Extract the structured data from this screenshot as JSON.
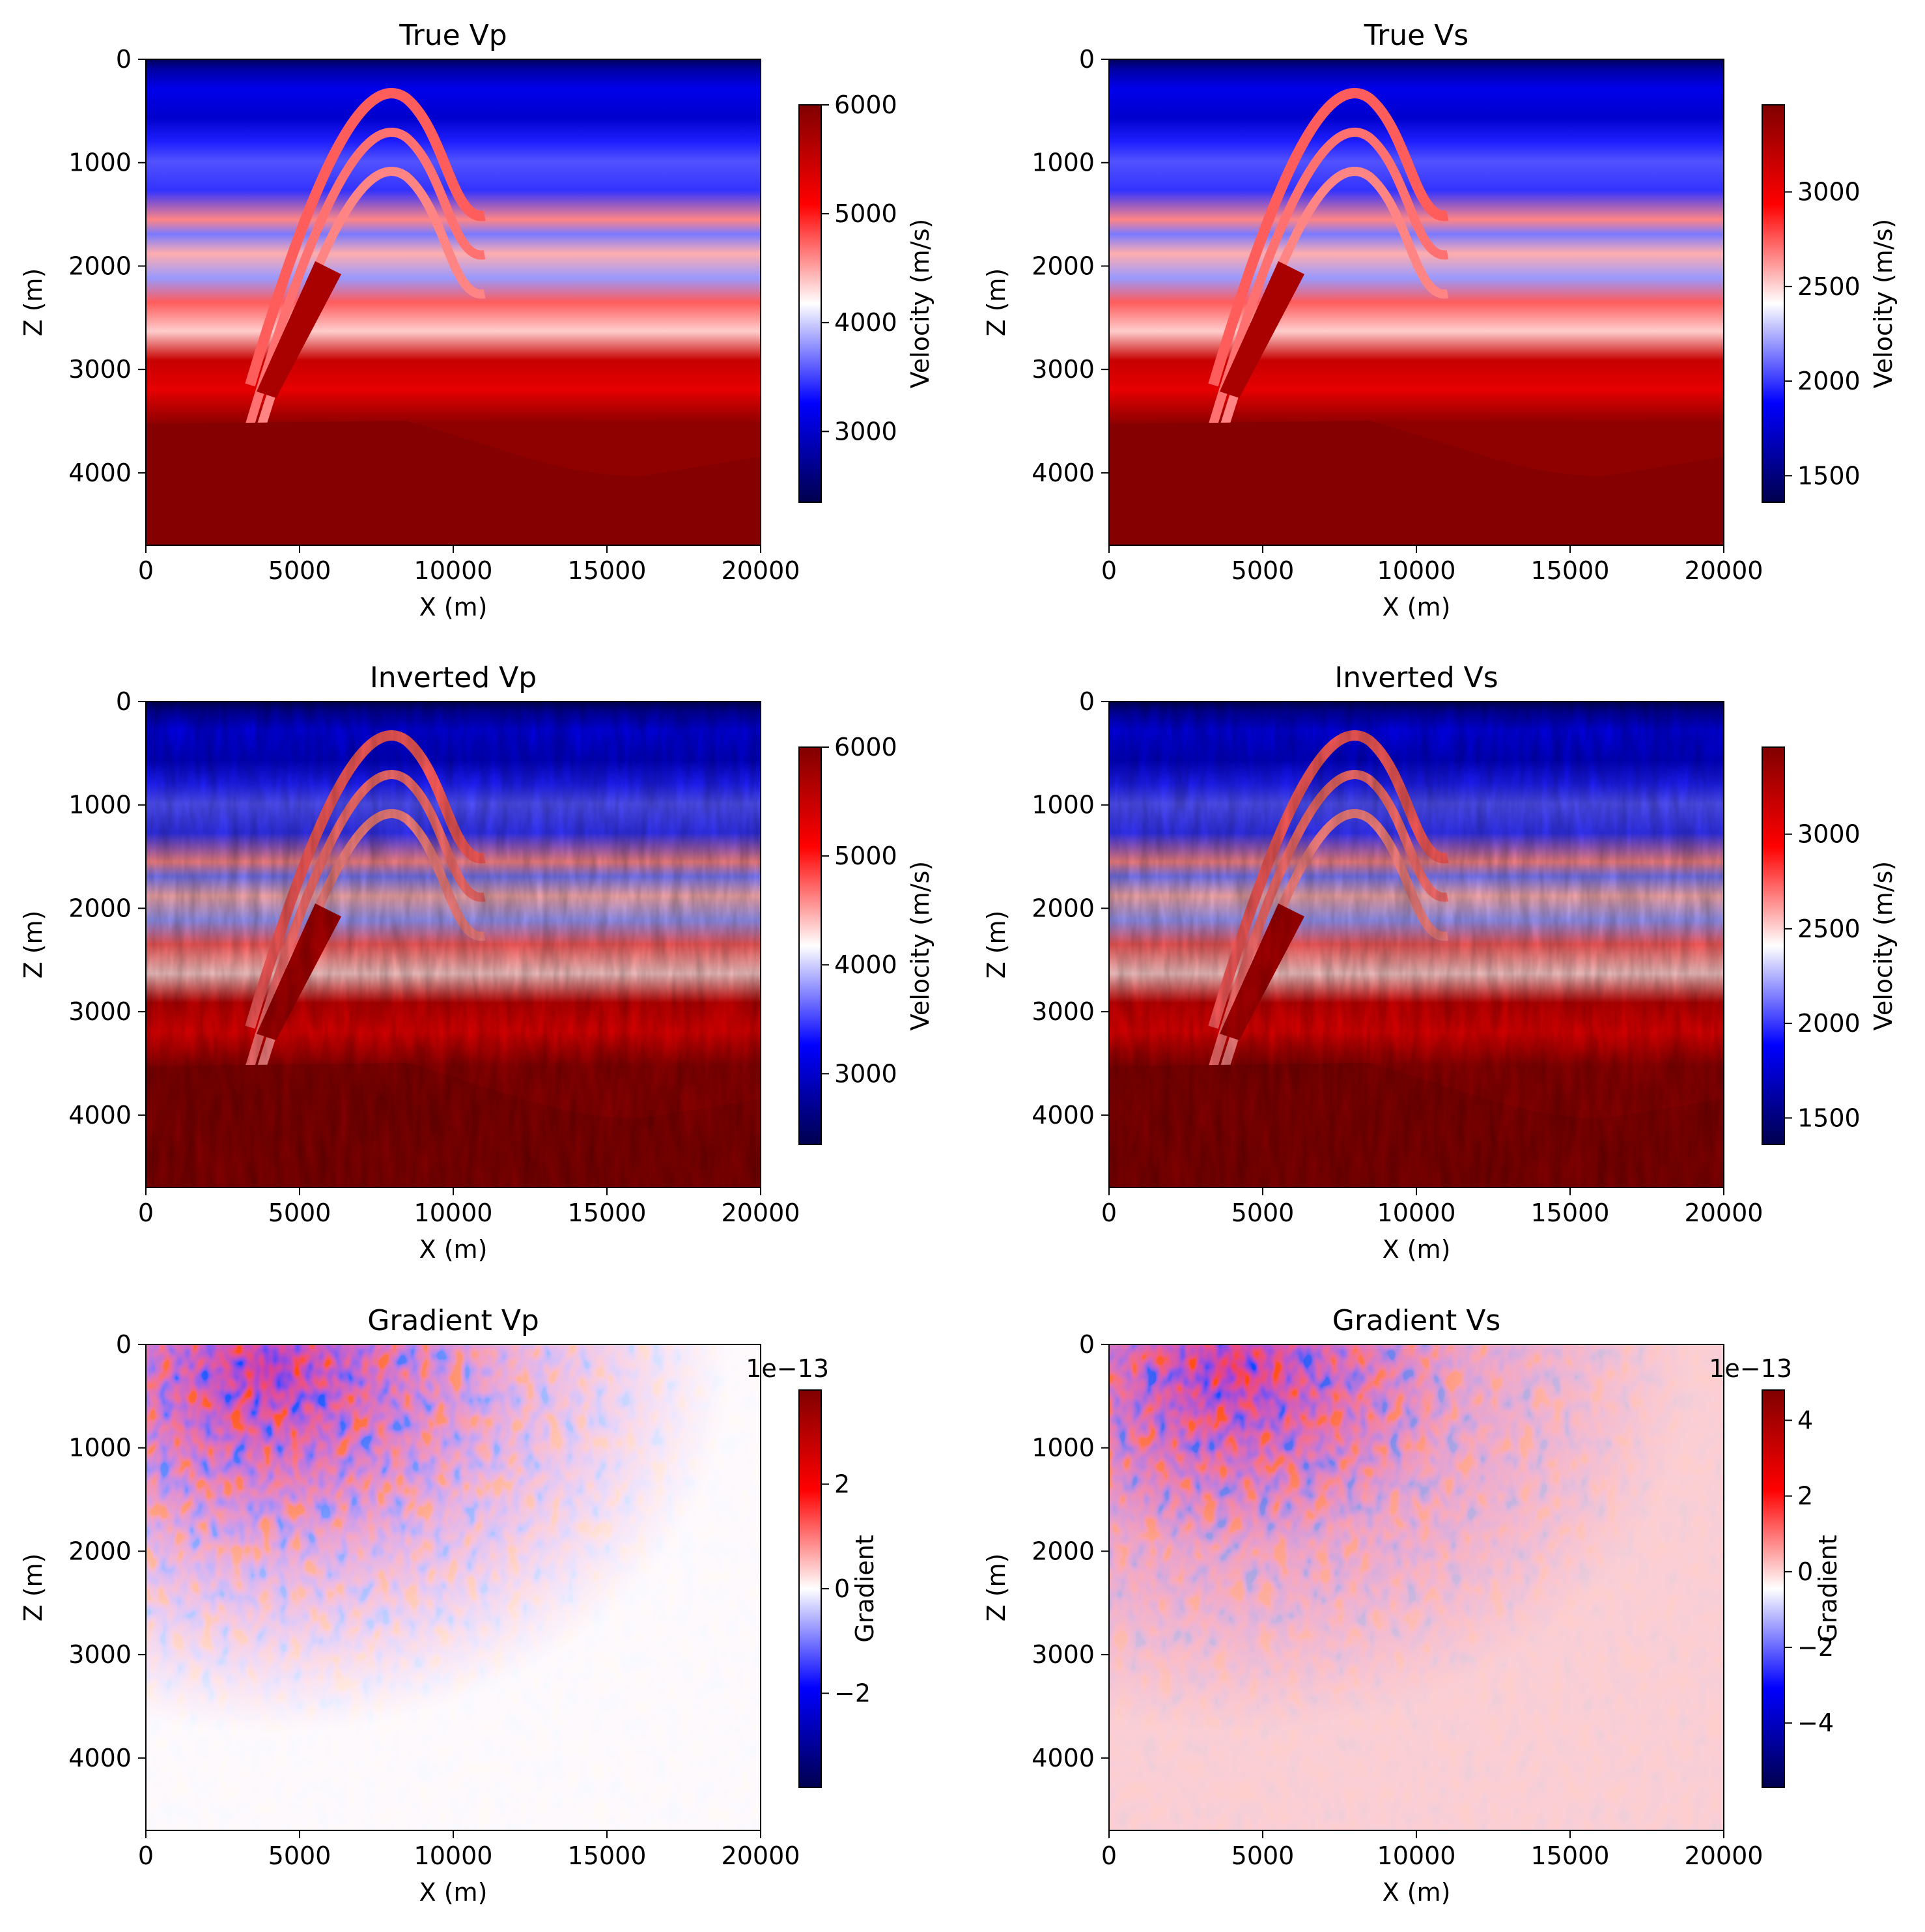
{
  "chart_data": [
    {
      "type": "heatmap",
      "title": "True Vp",
      "xlabel": "X (m)",
      "ylabel": "Z (m)",
      "xlim": [
        0,
        20000
      ],
      "ylim": [
        4700,
        0
      ],
      "xticks": [
        "0",
        "5000",
        "10000",
        "15000",
        "20000"
      ],
      "yticks": [
        "0",
        "1000",
        "2000",
        "3000",
        "4000"
      ],
      "colormap": "seismic",
      "colorbar": {
        "label": "Velocity (m/s)",
        "range": [
          2350,
          6000
        ],
        "ticks": [
          3000,
          4000,
          5000,
          6000
        ],
        "tick_labels": [
          "3000",
          "4000",
          "5000",
          "6000"
        ],
        "offset_text": ""
      },
      "field": "true"
    },
    {
      "type": "heatmap",
      "title": "True Vs",
      "xlabel": "X (m)",
      "ylabel": "Z (m)",
      "xlim": [
        0,
        20000
      ],
      "ylim": [
        4700,
        0
      ],
      "xticks": [
        "0",
        "5000",
        "10000",
        "15000",
        "20000"
      ],
      "yticks": [
        "0",
        "1000",
        "2000",
        "3000",
        "4000"
      ],
      "colormap": "seismic",
      "colorbar": {
        "label": "Velocity (m/s)",
        "range": [
          1360,
          3460
        ],
        "ticks": [
          1500,
          2000,
          2500,
          3000
        ],
        "tick_labels": [
          "1500",
          "2000",
          "2500",
          "3000"
        ],
        "offset_text": ""
      },
      "field": "true"
    },
    {
      "type": "heatmap",
      "title": "Inverted Vp",
      "xlabel": "X (m)",
      "ylabel": "Z (m)",
      "xlim": [
        0,
        20000
      ],
      "ylim": [
        4700,
        0
      ],
      "xticks": [
        "0",
        "5000",
        "10000",
        "15000",
        "20000"
      ],
      "yticks": [
        "0",
        "1000",
        "2000",
        "3000",
        "4000"
      ],
      "colormap": "seismic",
      "colorbar": {
        "label": "Velocity (m/s)",
        "range": [
          2350,
          6000
        ],
        "ticks": [
          3000,
          4000,
          5000,
          6000
        ],
        "tick_labels": [
          "3000",
          "4000",
          "5000",
          "6000"
        ],
        "offset_text": ""
      },
      "field": "inverted"
    },
    {
      "type": "heatmap",
      "title": "Inverted Vs",
      "xlabel": "X (m)",
      "ylabel": "Z (m)",
      "xlim": [
        0,
        20000
      ],
      "ylim": [
        4700,
        0
      ],
      "xticks": [
        "0",
        "5000",
        "10000",
        "15000",
        "20000"
      ],
      "yticks": [
        "0",
        "1000",
        "2000",
        "3000",
        "4000"
      ],
      "colormap": "seismic",
      "colorbar": {
        "label": "Velocity (m/s)",
        "range": [
          1360,
          3460
        ],
        "ticks": [
          1500,
          2000,
          2500,
          3000
        ],
        "tick_labels": [
          "1500",
          "2000",
          "2500",
          "3000"
        ],
        "offset_text": ""
      },
      "field": "inverted"
    },
    {
      "type": "heatmap",
      "title": "Gradient Vp",
      "xlabel": "X (m)",
      "ylabel": "Z (m)",
      "xlim": [
        0,
        20000
      ],
      "ylim": [
        4700,
        0
      ],
      "xticks": [
        "0",
        "5000",
        "10000",
        "15000",
        "20000"
      ],
      "yticks": [
        "0",
        "1000",
        "2000",
        "3000",
        "4000"
      ],
      "colormap": "seismic",
      "colorbar": {
        "label": "Gradient",
        "range": [
          -3.8,
          3.8
        ],
        "ticks": [
          -2,
          0,
          2
        ],
        "tick_labels": [
          "−2",
          "0",
          "2"
        ],
        "offset_text": "1e−13"
      },
      "field": "gradient_vp"
    },
    {
      "type": "heatmap",
      "title": "Gradient Vs",
      "xlabel": "X (m)",
      "ylabel": "Z (m)",
      "xlim": [
        0,
        20000
      ],
      "ylim": [
        4700,
        0
      ],
      "xticks": [
        "0",
        "5000",
        "10000",
        "15000",
        "20000"
      ],
      "yticks": [
        "0",
        "1000",
        "2000",
        "3000",
        "4000"
      ],
      "colormap": "seismic",
      "colorbar": {
        "label": "Gradient",
        "range": [
          -5.7,
          4.8
        ],
        "ticks": [
          -4,
          -2,
          0,
          2,
          4
        ],
        "tick_labels": [
          "−4",
          "−2",
          "0",
          "2",
          "4"
        ],
        "offset_text": "1e−13"
      },
      "field": "gradient_vs"
    }
  ]
}
